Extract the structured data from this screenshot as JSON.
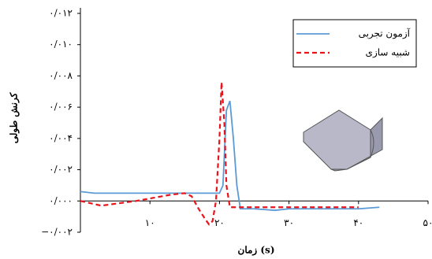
{
  "chart_data": {
    "type": "line",
    "x_label": "زمان (s)",
    "y_label": "کرنش طولی",
    "xlim": [
      0,
      50
    ],
    "ylim": [
      -0.002,
      0.012
    ],
    "xticks": [
      {
        "value": 10,
        "label": "۱۰"
      },
      {
        "value": 20,
        "label": "۲۰"
      },
      {
        "value": 30,
        "label": "۳۰"
      },
      {
        "value": 40,
        "label": "۴۰"
      },
      {
        "value": 50,
        "label": "۵۰"
      }
    ],
    "yticks": [
      {
        "value": -0.002,
        "label": "−۰/۰۰۲"
      },
      {
        "value": 0,
        "label": "۰/۰۰۰"
      },
      {
        "value": 0.002,
        "label": "۰/۰۰۲"
      },
      {
        "value": 0.004,
        "label": "۰/۰۰۴"
      },
      {
        "value": 0.006,
        "label": "۰/۰۰۶"
      },
      {
        "value": 0.008,
        "label": "۰/۰۰۸"
      },
      {
        "value": 0.01,
        "label": "۰/۰۱۰"
      },
      {
        "value": 0.012,
        "label": "۰/۰۱۲"
      }
    ],
    "legend": "top-right",
    "series": [
      {
        "name": "آزمون تجربی",
        "color": "#5b9bd5",
        "dashed": false,
        "x": [
          0,
          2,
          5,
          10,
          15,
          19,
          20,
          20.5,
          21,
          21.5,
          22,
          22.5,
          23,
          25,
          28,
          30,
          35,
          40,
          43
        ],
        "values": [
          0.0006,
          0.0005,
          0.0005,
          0.0005,
          0.0005,
          0.0005,
          0.0005,
          0.001,
          0.0058,
          0.0064,
          0.004,
          0.001,
          -0.0005,
          -0.0005,
          -0.0006,
          -0.0005,
          -0.0005,
          -0.0005,
          -0.0004
        ]
      },
      {
        "name": "شبیه سازی",
        "color": "#e8141b",
        "dashed": true,
        "x": [
          0,
          3,
          8,
          13,
          15,
          16,
          17,
          18,
          18.5,
          19,
          19.5,
          20,
          20.3,
          20.7,
          21,
          21.5,
          23,
          30,
          40
        ],
        "values": [
          0,
          -0.0003,
          0,
          0.0004,
          0.0005,
          0.0003,
          -0.0005,
          -0.0012,
          -0.0015,
          -0.0013,
          0,
          0.004,
          0.0076,
          0.005,
          0.001,
          -0.0004,
          -0.0004,
          -0.0004,
          -0.0004
        ]
      }
    ]
  }
}
